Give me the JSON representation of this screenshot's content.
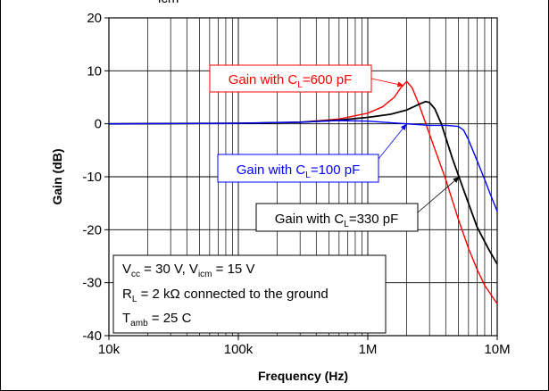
{
  "chart_data": {
    "type": "line",
    "title": "",
    "xlabel": "Frequency (Hz)",
    "ylabel": "Gain (dB)",
    "x_scale": "log",
    "xlim": [
      10000,
      10000000
    ],
    "ylim": [
      -40,
      20
    ],
    "x_ticks": [
      {
        "value": 10000,
        "label": "10k"
      },
      {
        "value": 100000,
        "label": "100k"
      },
      {
        "value": 1000000,
        "label": "1M"
      },
      {
        "value": 10000000,
        "label": "10M"
      }
    ],
    "y_ticks": [
      {
        "value": 20,
        "label": "20"
      },
      {
        "value": 10,
        "label": "10"
      },
      {
        "value": 0,
        "label": "0"
      },
      {
        "value": -10,
        "label": "-10"
      },
      {
        "value": -20,
        "label": "-20"
      },
      {
        "value": -30,
        "label": "-30"
      },
      {
        "value": -40,
        "label": "-40"
      }
    ],
    "grid": true,
    "series": [
      {
        "name": "Gain with C_L=600 pF",
        "color": "#ff0000",
        "x": [
          10000,
          100000,
          300000,
          600000,
          1000000,
          1300000,
          1600000,
          1800000,
          2000000,
          2200000,
          2500000,
          3000000,
          4000000,
          5000000,
          6000000,
          7000000,
          8000000,
          10000000
        ],
        "y": [
          0,
          0.1,
          0.3,
          0.9,
          2.0,
          3.2,
          5.0,
          6.8,
          8.0,
          6.8,
          3.5,
          -2.0,
          -10.5,
          -18.0,
          -23.5,
          -27.5,
          -30.5,
          -34.0
        ]
      },
      {
        "name": "Gain with C_L=330 pF",
        "color": "#000000",
        "x": [
          10000,
          100000,
          300000,
          600000,
          1000000,
          1500000,
          2000000,
          2500000,
          2800000,
          3000000,
          3300000,
          3700000,
          4500000,
          5500000,
          7000000,
          8500000,
          10000000
        ],
        "y": [
          0,
          0.1,
          0.3,
          0.7,
          1.2,
          1.8,
          2.6,
          3.7,
          4.2,
          4.0,
          2.8,
          0.0,
          -6.5,
          -12.5,
          -19.5,
          -23.5,
          -26.5
        ]
      },
      {
        "name": "Gain with C_L=100 pF",
        "color": "#0000ff",
        "x": [
          10000,
          100000,
          300000,
          600000,
          1000000,
          2000000,
          3000000,
          4000000,
          5000000,
          5500000,
          6000000,
          7000000,
          8000000,
          9000000,
          10000000
        ],
        "y": [
          0,
          0.1,
          0.3,
          0.6,
          0.5,
          0.0,
          -0.3,
          -0.3,
          -0.5,
          -1.2,
          -3.0,
          -7.0,
          -10.5,
          -13.8,
          -16.5
        ]
      }
    ]
  },
  "annotations": {
    "red": {
      "prefix": "Gain with C",
      "sub": "L",
      "suffix": "=600 pF",
      "color": "#ff0000"
    },
    "blue": {
      "prefix": "Gain with C",
      "sub": "L",
      "suffix": "=100 pF",
      "color": "#0000ff"
    },
    "black": {
      "prefix": "Gain with C",
      "sub": "L",
      "suffix": "=330 pF",
      "color": "#000000"
    }
  },
  "conditions": {
    "line1": {
      "a": "V",
      "a_sub": "cc",
      "b": " = 30 V, V",
      "b_sub": "icm",
      "c": " = 15 V"
    },
    "line2": {
      "a": "R",
      "a_sub": "L",
      "b": " = 2 kΩ connected to the ground"
    },
    "line3": {
      "a": "T",
      "a_sub": "amb",
      "b": " = 25  C"
    }
  },
  "top_fragment": "icm"
}
